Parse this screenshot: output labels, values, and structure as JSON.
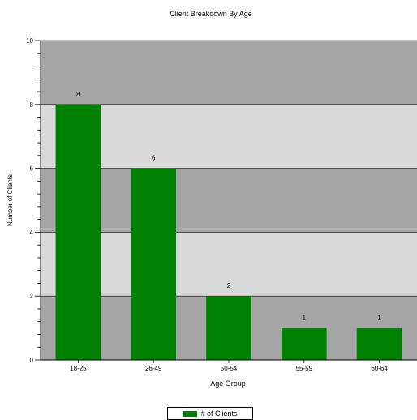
{
  "chart_data": {
    "type": "bar",
    "title": "Client Breakdown By Age",
    "xlabel": "Age Group",
    "ylabel": "Number of Clients",
    "categories": [
      "18-25",
      "26-49",
      "50-54",
      "55-59",
      "60-64"
    ],
    "series": [
      {
        "name": "# of Clients",
        "values": [
          8,
          6,
          2,
          1,
          1
        ]
      }
    ],
    "ylim": [
      0,
      10
    ],
    "yticks": [
      "0",
      "2",
      "4",
      "6",
      "8",
      "10"
    ],
    "data_labels": [
      "8",
      "6",
      "2",
      "1",
      "1"
    ],
    "legend": "bottom",
    "grid": true,
    "colors": {
      "bar": "#008000",
      "band_dark": "#a6a6a6",
      "band_light": "#d9d9d9"
    }
  }
}
